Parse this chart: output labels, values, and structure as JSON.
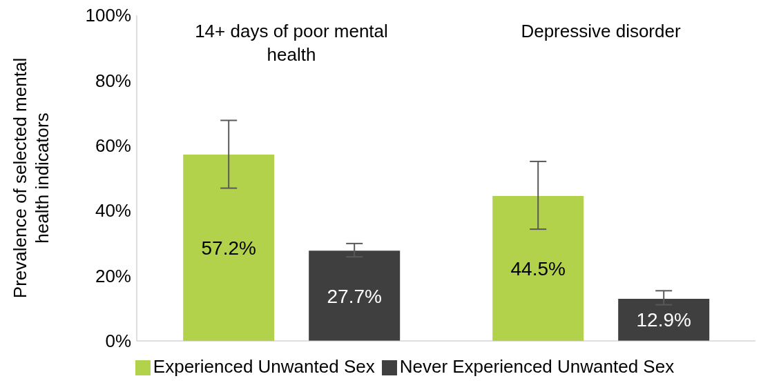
{
  "chart_data": {
    "type": "bar",
    "ylabel": "Prevalence of selected mental health indicators",
    "categories": [
      "14+ days of poor mental health",
      "Depressive disorder"
    ],
    "series": [
      {
        "name": "Experienced Unwanted Sex",
        "color": "#b2d24b",
        "values": [
          57.2,
          44.5
        ],
        "value_labels": [
          "57.2%",
          "44.5%"
        ],
        "errors": [
          [
            46.9,
            67.7
          ],
          [
            34.3,
            55.1
          ]
        ]
      },
      {
        "name": "Never Experienced Unwanted Sex",
        "color": "#3f3f3f",
        "values": [
          27.7,
          12.9
        ],
        "value_labels": [
          "27.7%",
          "12.9%"
        ],
        "errors": [
          [
            25.8,
            29.9
          ],
          [
            11.1,
            15.4
          ]
        ]
      }
    ],
    "ylim": [
      0,
      100
    ],
    "yticks": [
      {
        "value": 0,
        "label": "0%"
      },
      {
        "value": 20,
        "label": "20%"
      },
      {
        "value": 40,
        "label": "40%"
      },
      {
        "value": 60,
        "label": "60%"
      },
      {
        "value": 80,
        "label": "80%"
      },
      {
        "value": 100,
        "label": "100%"
      }
    ],
    "legend": "bottom"
  }
}
